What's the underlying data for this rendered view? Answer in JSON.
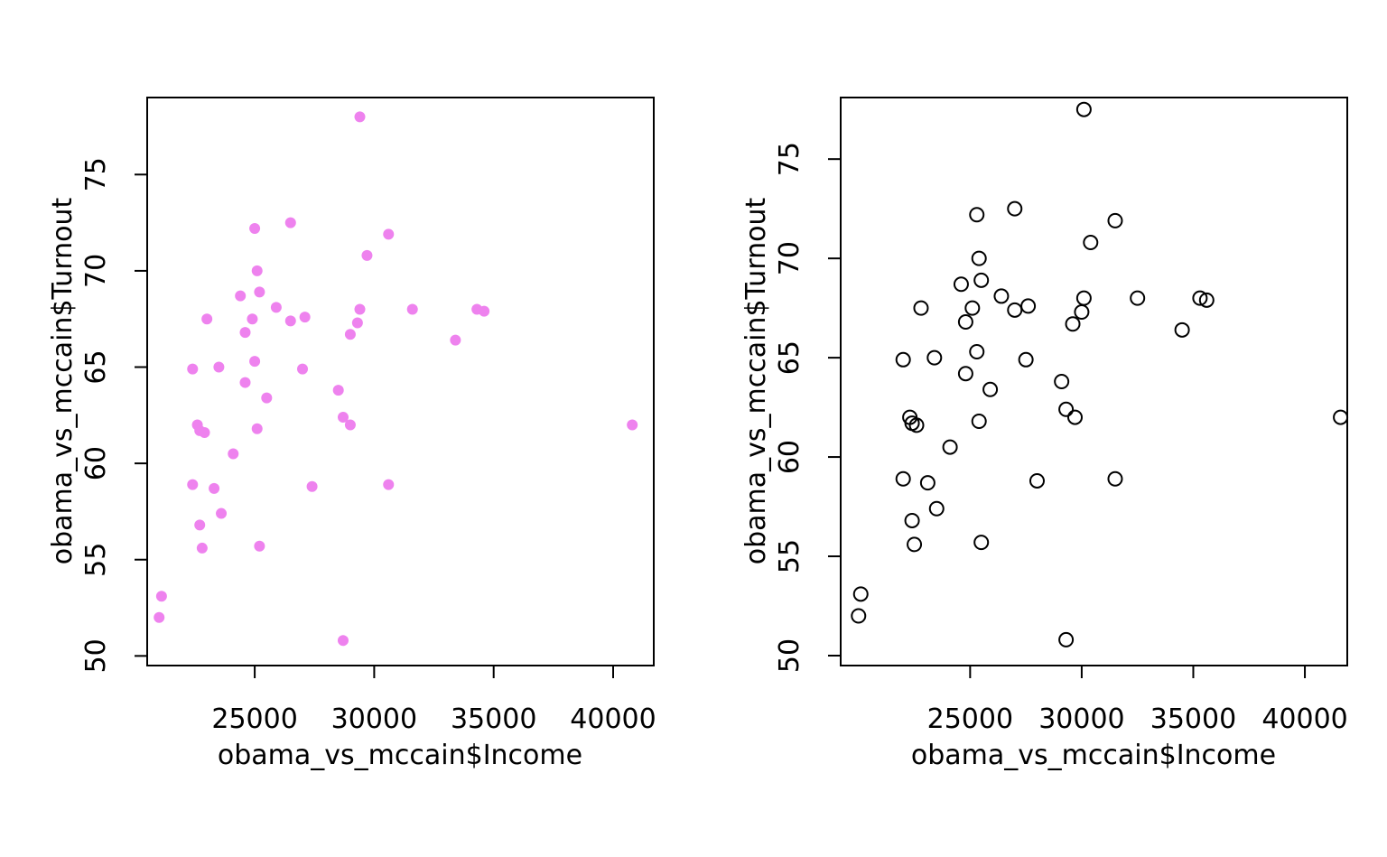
{
  "chart_data": [
    {
      "type": "scatter",
      "xlabel": "obama_vs_mccain$Income",
      "ylabel": "obama_vs_mccain$Turnout",
      "xlim": [
        20500,
        41700
      ],
      "ylim": [
        49.5,
        79.0
      ],
      "xticks": [
        25000,
        30000,
        35000,
        40000
      ],
      "yticks": [
        50,
        55,
        60,
        65,
        70,
        75
      ],
      "marker": "filled-circle",
      "color": "#EE82EE",
      "points": [
        [
          21000,
          52.0
        ],
        [
          21100,
          53.1
        ],
        [
          22400,
          64.9
        ],
        [
          22400,
          58.9
        ],
        [
          22600,
          62.0
        ],
        [
          22700,
          61.7
        ],
        [
          22700,
          56.8
        ],
        [
          22800,
          55.6
        ],
        [
          22900,
          61.6
        ],
        [
          23000,
          67.5
        ],
        [
          23300,
          58.7
        ],
        [
          23500,
          65.0
        ],
        [
          23600,
          57.4
        ],
        [
          24100,
          60.5
        ],
        [
          24400,
          68.7
        ],
        [
          24600,
          66.8
        ],
        [
          24600,
          64.2
        ],
        [
          24900,
          67.5
        ],
        [
          25000,
          72.2
        ],
        [
          25000,
          65.3
        ],
        [
          25100,
          70.0
        ],
        [
          25100,
          61.8
        ],
        [
          25200,
          68.9
        ],
        [
          25200,
          55.7
        ],
        [
          25500,
          63.4
        ],
        [
          25900,
          68.1
        ],
        [
          26500,
          72.5
        ],
        [
          26500,
          67.4
        ],
        [
          27000,
          64.9
        ],
        [
          27100,
          67.6
        ],
        [
          27400,
          58.8
        ],
        [
          28500,
          63.8
        ],
        [
          28700,
          62.4
        ],
        [
          28700,
          50.8
        ],
        [
          29000,
          66.7
        ],
        [
          29000,
          62.0
        ],
        [
          29300,
          67.3
        ],
        [
          29400,
          68.0
        ],
        [
          29400,
          78.0
        ],
        [
          29700,
          70.8
        ],
        [
          30600,
          71.9
        ],
        [
          30600,
          58.9
        ],
        [
          31600,
          68.0
        ],
        [
          33400,
          66.4
        ],
        [
          34300,
          68.0
        ],
        [
          34600,
          67.9
        ],
        [
          40800,
          62.0
        ]
      ]
    },
    {
      "type": "scatter",
      "xlabel": "obama_vs_mccain$Income",
      "ylabel": "obama_vs_mccain$Turnout",
      "xlim": [
        19200,
        41900
      ],
      "ylim": [
        49.5,
        78.1
      ],
      "xticks": [
        25000,
        30000,
        35000,
        40000
      ],
      "yticks": [
        50,
        55,
        60,
        65,
        70,
        75
      ],
      "marker": "open-circle",
      "color": "#000000",
      "points": [
        [
          20000,
          52.0
        ],
        [
          20100,
          53.1
        ],
        [
          22000,
          64.9
        ],
        [
          22000,
          58.9
        ],
        [
          22300,
          62.0
        ],
        [
          22400,
          61.7
        ],
        [
          22400,
          56.8
        ],
        [
          22500,
          55.6
        ],
        [
          22600,
          61.6
        ],
        [
          22800,
          67.5
        ],
        [
          23100,
          58.7
        ],
        [
          23400,
          65.0
        ],
        [
          23500,
          57.4
        ],
        [
          24100,
          60.5
        ],
        [
          24600,
          68.7
        ],
        [
          24800,
          66.8
        ],
        [
          24800,
          64.2
        ],
        [
          25100,
          67.5
        ],
        [
          25300,
          72.2
        ],
        [
          25300,
          65.3
        ],
        [
          25400,
          70.0
        ],
        [
          25400,
          61.8
        ],
        [
          25500,
          68.9
        ],
        [
          25500,
          55.7
        ],
        [
          25900,
          63.4
        ],
        [
          26400,
          68.1
        ],
        [
          27000,
          72.5
        ],
        [
          27000,
          67.4
        ],
        [
          27500,
          64.9
        ],
        [
          27600,
          67.6
        ],
        [
          28000,
          58.8
        ],
        [
          29100,
          63.8
        ],
        [
          29300,
          62.4
        ],
        [
          29300,
          50.8
        ],
        [
          29600,
          66.7
        ],
        [
          29700,
          62.0
        ],
        [
          30000,
          67.3
        ],
        [
          30100,
          68.0
        ],
        [
          30100,
          77.5
        ],
        [
          30400,
          70.8
        ],
        [
          31500,
          71.9
        ],
        [
          31500,
          58.9
        ],
        [
          32500,
          68.0
        ],
        [
          34500,
          66.4
        ],
        [
          35300,
          68.0
        ],
        [
          35600,
          67.9
        ],
        [
          41600,
          62.0
        ]
      ]
    }
  ]
}
